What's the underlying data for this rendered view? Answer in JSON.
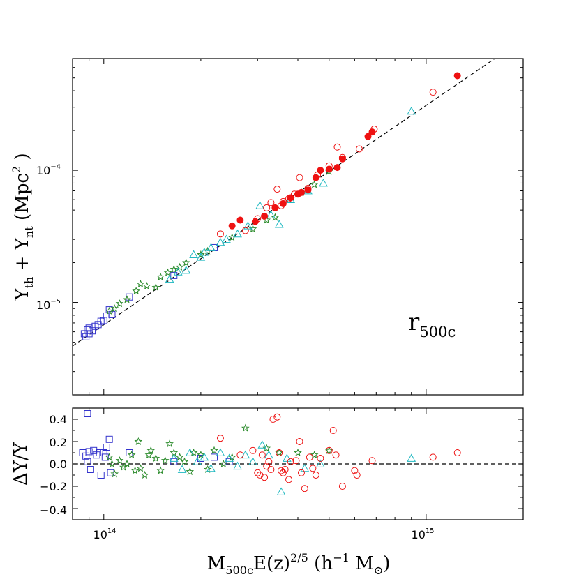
{
  "chart_data": {
    "type": "scatter",
    "title": "",
    "annotation": {
      "main": "r",
      "sub": "500c"
    },
    "x_axis": {
      "scale": "log",
      "range": [
        80000000000000.0,
        2000000000000000.0
      ],
      "ticks": [
        {
          "value": 100000000000000.0,
          "base": "10",
          "exp": "14"
        },
        {
          "value": 1000000000000000.0,
          "base": "10",
          "exp": "15"
        }
      ],
      "label": {
        "t1": "M",
        "t1_sub": "500c",
        "t2": "E(z)",
        "t2_sup": "2/5",
        "t3": " (h",
        "t3_sup": "−1",
        "t4": " M",
        "t4_sub": "⊙",
        "t5": ")"
      }
    },
    "top_panel": {
      "y_scale": "log",
      "y_range": [
        2e-06,
        0.0007
      ],
      "y_ticks": [
        {
          "value": 1e-05,
          "base": "10",
          "exp": "−5"
        },
        {
          "value": 0.0001,
          "base": "10",
          "exp": "−4"
        }
      ],
      "y_label": {
        "t1": "Y",
        "t1_sub": "th",
        "t2": " + Y",
        "t2_sub": "nt",
        "t3": " (Mpc",
        "t3_sup": "2",
        "t4": " )"
      },
      "fit_line": {
        "slope": 1.66,
        "pivot_x": 300000000000000.0,
        "pivot_y": 4.2e-05,
        "style": "dashed"
      }
    },
    "bottom_panel": {
      "y_scale": "linear",
      "y_range": [
        -0.5,
        0.5
      ],
      "y_ticks": [
        -0.4,
        -0.2,
        0.0,
        0.2,
        0.4
      ],
      "y_tick_labels": [
        "−0.4",
        "−0.2",
        "0.0",
        "0.2",
        "0.4"
      ],
      "y_label": "ΔY/Y",
      "reference_line": 0
    },
    "series": [
      {
        "name": "blue squares",
        "marker": "square",
        "color": "#3333cc",
        "filled": false,
        "top": [
          [
            87000000000000.0,
            5.8e-06
          ],
          [
            88000000000000.0,
            5.5e-06
          ],
          [
            89000000000000.0,
            6.2e-06
          ],
          [
            90000000000000.0,
            5.8e-06
          ],
          [
            90000000000000.0,
            6.4e-06
          ],
          [
            92000000000000.0,
            6.1e-06
          ],
          [
            94000000000000.0,
            6.6e-06
          ],
          [
            96000000000000.0,
            6.8e-06
          ],
          [
            98000000000000.0,
            7.2e-06
          ],
          [
            100000000000000.0,
            7.3e-06
          ],
          [
            102000000000000.0,
            7.9e-06
          ],
          [
            104000000000000.0,
            8.8e-06
          ],
          [
            106000000000000.0,
            8.1e-06
          ],
          [
            120000000000000.0,
            1.1e-05
          ],
          [
            165000000000000.0,
            1.6e-05
          ],
          [
            220000000000000.0,
            2.6e-05
          ]
        ],
        "bottom": [
          [
            86000000000000.0,
            0.1
          ],
          [
            88000000000000.0,
            0.07
          ],
          [
            89000000000000.0,
            0.45
          ],
          [
            89000000000000.0,
            0.02
          ],
          [
            90000000000000.0,
            0.11
          ],
          [
            91000000000000.0,
            -0.05
          ],
          [
            93000000000000.0,
            0.12
          ],
          [
            95000000000000.0,
            0.08
          ],
          [
            97000000000000.0,
            0.1
          ],
          [
            98000000000000.0,
            -0.1
          ],
          [
            100000000000000.0,
            0.1
          ],
          [
            101000000000000.0,
            0.06
          ],
          [
            102000000000000.0,
            0.15
          ],
          [
            104000000000000.0,
            0.22
          ],
          [
            105000000000000.0,
            -0.08
          ],
          [
            120000000000000.0,
            0.1
          ],
          [
            165000000000000.0,
            0.02
          ],
          [
            200000000000000.0,
            0.05
          ],
          [
            220000000000000.0,
            0.06
          ],
          [
            245000000000000.0,
            0.02
          ]
        ]
      },
      {
        "name": "green stars",
        "marker": "star",
        "color": "#2a8a2a",
        "filled": false,
        "top": [
          [
            104000000000000.0,
            8.6e-06
          ],
          [
            108000000000000.0,
            9e-06
          ],
          [
            112000000000000.0,
            9.8e-06
          ],
          [
            118000000000000.0,
            1.05e-05
          ],
          [
            126000000000000.0,
            1.22e-05
          ],
          [
            130000000000000.0,
            1.38e-05
          ],
          [
            136000000000000.0,
            1.33e-05
          ],
          [
            145000000000000.0,
            1.3e-05
          ],
          [
            150000000000000.0,
            1.56e-05
          ],
          [
            158000000000000.0,
            1.68e-05
          ],
          [
            165000000000000.0,
            1.78e-05
          ],
          [
            172000000000000.0,
            1.85e-05
          ],
          [
            180000000000000.0,
            2e-05
          ],
          [
            200000000000000.0,
            2.3e-05
          ],
          [
            210000000000000.0,
            2.45e-05
          ],
          [
            250000000000000.0,
            3.1e-05
          ],
          [
            290000000000000.0,
            3.6e-05
          ],
          [
            320000000000000.0,
            4.2e-05
          ],
          [
            340000000000000.0,
            4.4e-05
          ],
          [
            410000000000000.0,
            6.8e-05
          ],
          [
            450000000000000.0,
            7.8e-05
          ],
          [
            500000000000000.0,
            9.8e-05
          ]
        ],
        "bottom": [
          [
            104000000000000.0,
            0.06
          ],
          [
            106000000000000.0,
            0.0
          ],
          [
            108000000000000.0,
            -0.09
          ],
          [
            112000000000000.0,
            0.03
          ],
          [
            115000000000000.0,
            -0.03
          ],
          [
            118000000000000.0,
            0.0
          ],
          [
            122000000000000.0,
            0.08
          ],
          [
            125000000000000.0,
            -0.06
          ],
          [
            128000000000000.0,
            0.2
          ],
          [
            130000000000000.0,
            -0.04
          ],
          [
            134000000000000.0,
            -0.1
          ],
          [
            138000000000000.0,
            0.08
          ],
          [
            140000000000000.0,
            0.12
          ],
          [
            145000000000000.0,
            0.05
          ],
          [
            150000000000000.0,
            -0.06
          ],
          [
            155000000000000.0,
            0.03
          ],
          [
            160000000000000.0,
            0.18
          ],
          [
            165000000000000.0,
            0.1
          ],
          [
            172000000000000.0,
            0.06
          ],
          [
            178000000000000.0,
            0.02
          ],
          [
            185000000000000.0,
            -0.07
          ],
          [
            190000000000000.0,
            0.1
          ],
          [
            200000000000000.0,
            0.08
          ],
          [
            210000000000000.0,
            -0.05
          ],
          [
            220000000000000.0,
            0.12
          ],
          [
            235000000000000.0,
            0.0
          ],
          [
            250000000000000.0,
            0.06
          ],
          [
            275000000000000.0,
            0.32
          ],
          [
            320000000000000.0,
            0.14
          ],
          [
            350000000000000.0,
            0.1
          ],
          [
            400000000000000.0,
            0.1
          ],
          [
            450000000000000.0,
            0.08
          ],
          [
            500000000000000.0,
            0.12
          ]
        ]
      },
      {
        "name": "cyan triangles",
        "marker": "triangle",
        "color": "#1fb8c0",
        "filled": false,
        "top": [
          [
            160000000000000.0,
            1.5e-05
          ],
          [
            170000000000000.0,
            1.7e-05
          ],
          [
            180000000000000.0,
            1.75e-05
          ],
          [
            190000000000000.0,
            2.3e-05
          ],
          [
            200000000000000.0,
            2.2e-05
          ],
          [
            205000000000000.0,
            2.4e-05
          ],
          [
            215000000000000.0,
            2.6e-05
          ],
          [
            230000000000000.0,
            2.85e-05
          ],
          [
            240000000000000.0,
            3e-05
          ],
          [
            260000000000000.0,
            3.3e-05
          ],
          [
            280000000000000.0,
            3.8e-05
          ],
          [
            305000000000000.0,
            5.4e-05
          ],
          [
            330000000000000.0,
            4.6e-05
          ],
          [
            350000000000000.0,
            3.9e-05
          ],
          [
            380000000000000.0,
            6e-05
          ],
          [
            430000000000000.0,
            7e-05
          ],
          [
            480000000000000.0,
            8e-05
          ],
          [
            900000000000000.0,
            0.00028
          ]
        ],
        "bottom": [
          [
            165000000000000.0,
            0.05
          ],
          [
            175000000000000.0,
            -0.05
          ],
          [
            185000000000000.0,
            0.1
          ],
          [
            195000000000000.0,
            0.02
          ],
          [
            205000000000000.0,
            0.06
          ],
          [
            215000000000000.0,
            -0.04
          ],
          [
            230000000000000.0,
            0.1
          ],
          [
            245000000000000.0,
            0.05
          ],
          [
            260000000000000.0,
            -0.02
          ],
          [
            275000000000000.0,
            0.08
          ],
          [
            290000000000000.0,
            0.02
          ],
          [
            310000000000000.0,
            0.17
          ],
          [
            325000000000000.0,
            0.08
          ],
          [
            355000000000000.0,
            -0.25
          ],
          [
            370000000000000.0,
            0.05
          ],
          [
            420000000000000.0,
            -0.04
          ],
          [
            470000000000000.0,
            0.0
          ],
          [
            900000000000000.0,
            0.05
          ]
        ]
      },
      {
        "name": "red open circles",
        "marker": "circle",
        "color": "#ee1111",
        "filled": false,
        "top": [
          [
            230000000000000.0,
            3.3e-05
          ],
          [
            275000000000000.0,
            3.5e-05
          ],
          [
            300000000000000.0,
            4.3e-05
          ],
          [
            320000000000000.0,
            5.2e-05
          ],
          [
            330000000000000.0,
            5.7e-05
          ],
          [
            345000000000000.0,
            7.2e-05
          ],
          [
            355000000000000.0,
            5.4e-05
          ],
          [
            360000000000000.0,
            5.8e-05
          ],
          [
            375000000000000.0,
            6.1e-05
          ],
          [
            390000000000000.0,
            6.6e-05
          ],
          [
            405000000000000.0,
            8.8e-05
          ],
          [
            430000000000000.0,
            7.3e-05
          ],
          [
            460000000000000.0,
            9.2e-05
          ],
          [
            500000000000000.0,
            0.000108
          ],
          [
            530000000000000.0,
            0.00015
          ],
          [
            550000000000000.0,
            0.000125
          ],
          [
            620000000000000.0,
            0.000145
          ],
          [
            690000000000000.0,
            0.000205
          ],
          [
            1050000000000000.0,
            0.00039
          ]
        ],
        "bottom": [
          [
            230000000000000.0,
            0.23
          ],
          [
            265000000000000.0,
            0.08
          ],
          [
            290000000000000.0,
            0.12
          ],
          [
            300000000000000.0,
            -0.08
          ],
          [
            305000000000000.0,
            -0.1
          ],
          [
            310000000000000.0,
            0.08
          ],
          [
            315000000000000.0,
            -0.12
          ],
          [
            320000000000000.0,
            -0.02
          ],
          [
            325000000000000.0,
            0.02
          ],
          [
            330000000000000.0,
            -0.05
          ],
          [
            335000000000000.0,
            0.4
          ],
          [
            345000000000000.0,
            0.42
          ],
          [
            350000000000000.0,
            0.1
          ],
          [
            355000000000000.0,
            -0.06
          ],
          [
            360000000000000.0,
            -0.08
          ],
          [
            365000000000000.0,
            -0.05
          ],
          [
            375000000000000.0,
            -0.14
          ],
          [
            380000000000000.0,
            0.02
          ],
          [
            395000000000000.0,
            0.03
          ],
          [
            405000000000000.0,
            0.2
          ],
          [
            410000000000000.0,
            -0.08
          ],
          [
            420000000000000.0,
            -0.22
          ],
          [
            435000000000000.0,
            0.06
          ],
          [
            445000000000000.0,
            -0.04
          ],
          [
            455000000000000.0,
            -0.1
          ],
          [
            470000000000000.0,
            0.05
          ],
          [
            500000000000000.0,
            0.12
          ],
          [
            515000000000000.0,
            0.3
          ],
          [
            525000000000000.0,
            0.08
          ],
          [
            550000000000000.0,
            -0.2
          ],
          [
            600000000000000.0,
            -0.06
          ],
          [
            610000000000000.0,
            -0.1
          ],
          [
            680000000000000.0,
            0.03
          ],
          [
            1050000000000000.0,
            0.06
          ],
          [
            1250000000000000.0,
            0.1
          ]
        ]
      },
      {
        "name": "red filled circles",
        "marker": "circle",
        "color": "#ee1111",
        "filled": true,
        "top": [
          [
            250000000000000.0,
            3.8e-05
          ],
          [
            265000000000000.0,
            4.2e-05
          ],
          [
            295000000000000.0,
            4.1e-05
          ],
          [
            315000000000000.0,
            4.5e-05
          ],
          [
            340000000000000.0,
            5.2e-05
          ],
          [
            360000000000000.0,
            5.6e-05
          ],
          [
            380000000000000.0,
            6.2e-05
          ],
          [
            400000000000000.0,
            6.6e-05
          ],
          [
            410000000000000.0,
            6.8e-05
          ],
          [
            430000000000000.0,
            7.1e-05
          ],
          [
            455000000000000.0,
            8.8e-05
          ],
          [
            470000000000000.0,
            0.0001
          ],
          [
            500000000000000.0,
            0.000102
          ],
          [
            530000000000000.0,
            0.000105
          ],
          [
            550000000000000.0,
            0.000122
          ],
          [
            660000000000000.0,
            0.00018
          ],
          [
            680000000000000.0,
            0.000195
          ],
          [
            1250000000000000.0,
            0.00052
          ]
        ]
      }
    ]
  }
}
